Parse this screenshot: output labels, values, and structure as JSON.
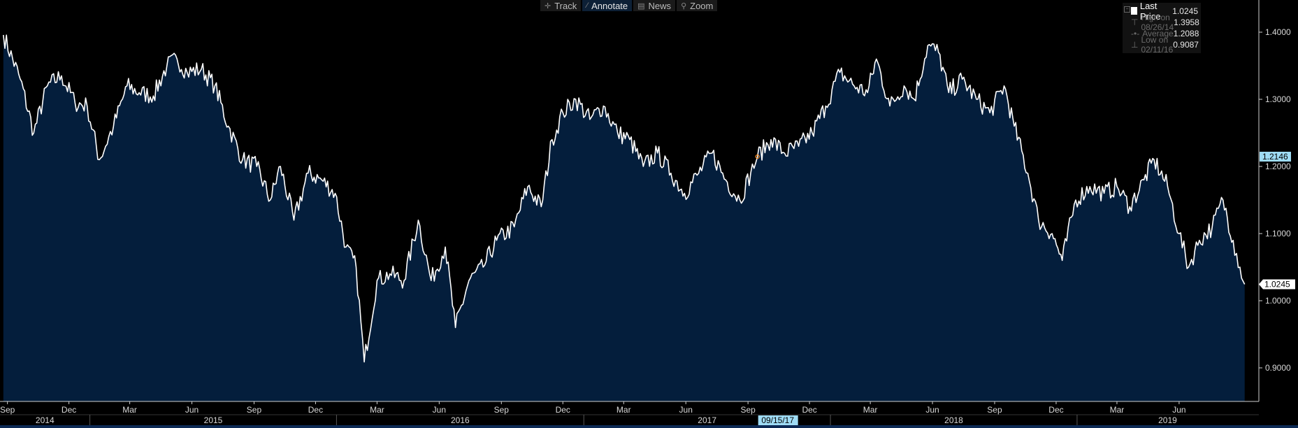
{
  "toolbar": {
    "track": "Track",
    "annotate": "Annotate",
    "news": "News",
    "zoom": "Zoom"
  },
  "legend": {
    "last_label": "Last Price",
    "last_value": "1.0245",
    "high_label": "High on 08/26/14",
    "high_value": "1.3958",
    "avg_label": "Average",
    "avg_value": "1.2088",
    "low_label": "Low on 02/11/16",
    "low_value": "0.9087"
  },
  "crosshair": {
    "date_label": "09/15/17",
    "value_label": "1.2146",
    "value": 1.2146
  },
  "last_tag": "1.0245",
  "colors": {
    "background": "#000000",
    "area_fill": "#041e3c",
    "line": "#ffffff",
    "crosshair_tag": "#9fdcf5",
    "marker": "#ff8c1a"
  },
  "chart_data": {
    "type": "area",
    "series": [
      {
        "name": "Last Price",
        "points": [
          [
            "2014-08-26",
            1.3958
          ],
          [
            "2014-09-20",
            1.33
          ],
          [
            "2014-10-10",
            1.25
          ],
          [
            "2014-10-30",
            1.32
          ],
          [
            "2014-11-20",
            1.335
          ],
          [
            "2014-12-10",
            1.295
          ],
          [
            "2014-12-28",
            1.29
          ],
          [
            "2015-01-15",
            1.21
          ],
          [
            "2015-02-05",
            1.26
          ],
          [
            "2015-02-25",
            1.32
          ],
          [
            "2015-03-15",
            1.31
          ],
          [
            "2015-04-05",
            1.305
          ],
          [
            "2015-04-25",
            1.35
          ],
          [
            "2015-05-10",
            1.36
          ],
          [
            "2015-05-25",
            1.34
          ],
          [
            "2015-06-15",
            1.345
          ],
          [
            "2015-07-05",
            1.32
          ],
          [
            "2015-07-25",
            1.26
          ],
          [
            "2015-08-15",
            1.21
          ],
          [
            "2015-09-05",
            1.2
          ],
          [
            "2015-09-25",
            1.15
          ],
          [
            "2015-10-10",
            1.2
          ],
          [
            "2015-10-30",
            1.12
          ],
          [
            "2015-11-20",
            1.19
          ],
          [
            "2015-12-10",
            1.18
          ],
          [
            "2015-12-30",
            1.16
          ],
          [
            "2016-01-15",
            1.08
          ],
          [
            "2016-01-30",
            1.05
          ],
          [
            "2016-02-11",
            0.9087
          ],
          [
            "2016-03-01",
            1.03
          ],
          [
            "2016-03-20",
            1.04
          ],
          [
            "2016-04-10",
            1.03
          ],
          [
            "2016-05-01",
            1.12
          ],
          [
            "2016-05-20",
            1.03
          ],
          [
            "2016-06-10",
            1.08
          ],
          [
            "2016-06-25",
            0.96
          ],
          [
            "2016-07-15",
            1.03
          ],
          [
            "2016-08-05",
            1.05
          ],
          [
            "2016-08-25",
            1.09
          ],
          [
            "2016-09-20",
            1.11
          ],
          [
            "2016-10-10",
            1.17
          ],
          [
            "2016-10-30",
            1.14
          ],
          [
            "2016-11-15",
            1.24
          ],
          [
            "2016-12-01",
            1.28
          ],
          [
            "2016-12-20",
            1.3
          ],
          [
            "2017-01-10",
            1.27
          ],
          [
            "2017-01-30",
            1.29
          ],
          [
            "2017-02-20",
            1.25
          ],
          [
            "2017-03-10",
            1.24
          ],
          [
            "2017-03-30",
            1.2
          ],
          [
            "2017-04-20",
            1.22
          ],
          [
            "2017-05-10",
            1.19
          ],
          [
            "2017-05-30",
            1.16
          ],
          [
            "2017-06-20",
            1.19
          ],
          [
            "2017-07-10",
            1.22
          ],
          [
            "2017-07-30",
            1.18
          ],
          [
            "2017-08-20",
            1.15
          ],
          [
            "2017-09-05",
            1.19
          ],
          [
            "2017-09-15",
            1.2146
          ],
          [
            "2017-10-05",
            1.24
          ],
          [
            "2017-10-25",
            1.22
          ],
          [
            "2017-11-15",
            1.23
          ],
          [
            "2017-12-05",
            1.25
          ],
          [
            "2017-12-25",
            1.29
          ],
          [
            "2018-01-15",
            1.34
          ],
          [
            "2018-02-05",
            1.32
          ],
          [
            "2018-02-25",
            1.31
          ],
          [
            "2018-03-10",
            1.36
          ],
          [
            "2018-03-30",
            1.29
          ],
          [
            "2018-04-20",
            1.32
          ],
          [
            "2018-05-05",
            1.3
          ],
          [
            "2018-05-25",
            1.38
          ],
          [
            "2018-06-10",
            1.37
          ],
          [
            "2018-06-25",
            1.31
          ],
          [
            "2018-07-15",
            1.33
          ],
          [
            "2018-08-05",
            1.3
          ],
          [
            "2018-08-25",
            1.28
          ],
          [
            "2018-09-15",
            1.32
          ],
          [
            "2018-09-30",
            1.26
          ],
          [
            "2018-10-20",
            1.19
          ],
          [
            "2018-11-05",
            1.12
          ],
          [
            "2018-11-25",
            1.1
          ],
          [
            "2018-12-10",
            1.06
          ],
          [
            "2018-12-30",
            1.15
          ],
          [
            "2019-01-20",
            1.17
          ],
          [
            "2019-02-10",
            1.16
          ],
          [
            "2019-03-01",
            1.17
          ],
          [
            "2019-03-20",
            1.14
          ],
          [
            "2019-04-10",
            1.18
          ],
          [
            "2019-04-25",
            1.21
          ],
          [
            "2019-05-15",
            1.17
          ],
          [
            "2019-06-01",
            1.1
          ],
          [
            "2019-06-15",
            1.05
          ],
          [
            "2019-07-01",
            1.09
          ],
          [
            "2019-07-20",
            1.11
          ],
          [
            "2019-08-05",
            1.15
          ],
          [
            "2019-08-20",
            1.09
          ],
          [
            "2019-08-30",
            1.05
          ],
          [
            "2019-09-06",
            1.0245
          ]
        ]
      }
    ],
    "xlim": [
      "2014-08-21",
      "2019-09-26"
    ],
    "ylim": [
      0.85,
      1.425
    ],
    "y_ticks": [
      "0.9000",
      "1.0000",
      "1.1000",
      "1.2000",
      "1.3000",
      "1.4000"
    ],
    "month_ticks": [
      {
        "date": "2014-09-01",
        "label": "Sep"
      },
      {
        "date": "2014-12-01",
        "label": "Dec"
      },
      {
        "date": "2015-03-01",
        "label": "Mar"
      },
      {
        "date": "2015-06-01",
        "label": "Jun"
      },
      {
        "date": "2015-09-01",
        "label": "Sep"
      },
      {
        "date": "2015-12-01",
        "label": "Dec"
      },
      {
        "date": "2016-03-01",
        "label": "Mar"
      },
      {
        "date": "2016-06-01",
        "label": "Jun"
      },
      {
        "date": "2016-09-01",
        "label": "Sep"
      },
      {
        "date": "2016-12-01",
        "label": "Dec"
      },
      {
        "date": "2017-03-01",
        "label": "Mar"
      },
      {
        "date": "2017-06-01",
        "label": "Jun"
      },
      {
        "date": "2017-09-01",
        "label": "Sep"
      },
      {
        "date": "2017-12-01",
        "label": "Dec"
      },
      {
        "date": "2018-03-01",
        "label": "Mar"
      },
      {
        "date": "2018-06-01",
        "label": "Jun"
      },
      {
        "date": "2018-09-01",
        "label": "Sep"
      },
      {
        "date": "2018-12-01",
        "label": "Dec"
      },
      {
        "date": "2019-03-01",
        "label": "Mar"
      },
      {
        "date": "2019-06-01",
        "label": "Jun"
      }
    ],
    "year_ticks": [
      {
        "start": "2014-08-21",
        "end": "2015-01-01",
        "label": "2014"
      },
      {
        "start": "2015-01-01",
        "end": "2016-01-01",
        "label": "2015"
      },
      {
        "start": "2016-01-01",
        "end": "2017-01-01",
        "label": "2016"
      },
      {
        "start": "2017-01-01",
        "end": "2018-01-01",
        "label": "2017"
      },
      {
        "start": "2018-01-01",
        "end": "2019-01-01",
        "label": "2018"
      },
      {
        "start": "2019-01-01",
        "end": "2019-09-26",
        "label": "2019"
      }
    ],
    "grid": false,
    "legend_position": "top-right"
  }
}
